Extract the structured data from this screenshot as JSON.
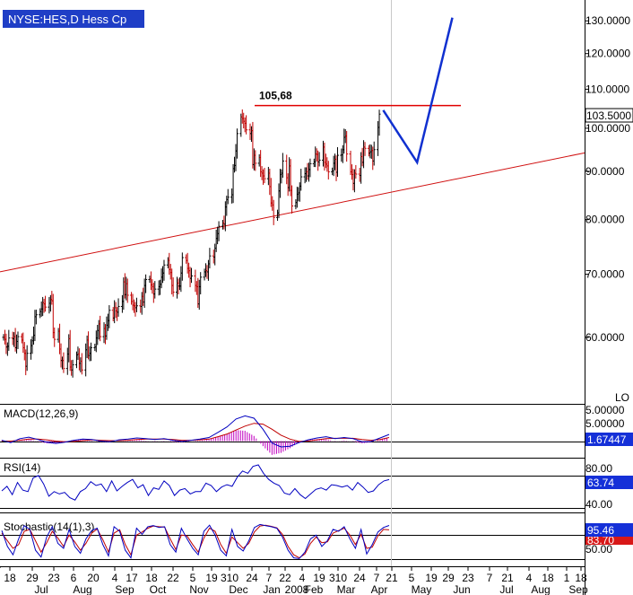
{
  "chart_data": {
    "type": "candlestick",
    "title": "NYSE:HES,D Hess Cp",
    "price_axis": {
      "ylim": [
        51,
        135
      ],
      "scale": "log",
      "ticks": [
        "130.0000",
        "120.0000",
        "110.0000",
        "100.0000",
        "90.0000",
        "80.0000",
        "70.0000",
        "60.0000"
      ],
      "last_price_label": "103.5000",
      "corner_label": "LO"
    },
    "annotations": {
      "resistance_label": "105,68",
      "resistance_value": 105.68,
      "projection_points": [
        [
          "2008-04-18",
          104.5
        ],
        [
          "2008-05-14",
          92
        ],
        [
          "2008-06-10",
          131
        ]
      ],
      "trendline": [
        [
          "2007-07-01",
          70.5
        ],
        [
          "2008-09-25",
          94.5
        ]
      ]
    },
    "price_series": {
      "start": "2007-07-02",
      "closes": [
        60.0,
        59.7,
        58.6,
        58.7,
        59.9,
        59.8,
        60.1,
        58.5,
        59.4,
        60.1,
        59.6,
        58.5,
        57.7,
        55.9,
        57.7,
        58.8,
        59.5,
        60.3,
        63.1,
        63.4,
        63.9,
        64.3,
        65.3,
        65.1,
        64.6,
        65.2,
        65.8,
        65.6,
        60.7,
        59.7,
        60.9,
        58.3,
        56.7,
        56.7,
        55.6,
        57.6,
        59.8,
        55.8,
        55.4,
        56.1,
        57.5,
        57.6,
        56.3,
        56.6,
        55.4,
        58.2,
        59.6,
        57.4,
        57.7,
        58.5,
        58.6,
        59.9,
        61.0,
        62.0,
        60.1,
        61.3,
        60.2,
        61.8,
        62.5,
        64.1,
        62.9,
        64.5,
        64.0,
        63.8,
        64.7,
        65.5,
        68.7,
        66.6,
        68.4,
        66.5,
        65.5,
        64.9,
        64.8,
        64.5,
        64.8,
        64.7,
        66.3,
        65.4,
        68.1,
        69.1,
        69.2,
        68.2,
        67.9,
        66.7,
        67.5,
        67.9,
        68.3,
        69.5,
        70.2,
        71.6,
        72.4,
        70.8,
        70.3,
        68.1,
        67.0,
        68.5,
        68.0,
        68.0,
        70.2,
        72.9,
        72.4,
        71.0,
        70.6,
        69.3,
        69.7,
        68.1,
        67.9,
        65.1,
        67.9,
        69.5,
        70.4,
        70.6,
        70.4,
        71.8,
        73.2,
        73.0,
        74.6,
        76.4,
        77.3,
        78.7,
        79.3,
        79.1,
        82.5,
        84.0,
        84.5,
        85.0,
        90.6,
        91.3,
        94.6,
        98.7,
        102.8,
        102.4,
        101.7,
        101.2,
        99.6,
        98.7,
        99.4,
        91.5,
        93.6,
        91.8,
        93.1,
        89.9,
        89.6,
        89.0,
        88.4,
        89.6,
        86.7,
        83.3,
        82.9,
        80.4,
        81.3,
        85.8,
        89.3,
        89.6,
        92.3,
        88.6,
        86.5,
        91.2,
        85.9,
        82.7,
        83.4,
        85.1,
        85.4,
        86.8,
        88.8,
        89.5,
        89.9,
        89.0,
        90.4,
        91.7,
        92.1,
        93.9,
        93.8,
        92.1,
        92.5,
        95.5,
        92.0,
        91.6,
        91.2,
        89.9,
        90.1,
        91.8,
        92.7,
        89.8,
        93.6,
        93.7,
        94.9,
        97.8,
        98.1,
        93.9,
        89.9,
        89.3,
        87.4,
        89.6,
        89.4,
        89.1,
        93.3,
        92.0,
        95.5,
        95.2,
        94.1,
        94.4,
        94.7,
        92.3,
        94.9,
        100.2,
        103.5
      ]
    },
    "x_axis": {
      "day_ticks": [
        "18",
        "29",
        "23",
        "6",
        "20",
        "4",
        "17",
        "18",
        "22",
        "5",
        "19",
        "310",
        "24",
        "7",
        "22",
        "4",
        "19",
        "310",
        "24",
        "7",
        "21",
        "5",
        "19",
        "29",
        "23",
        "7",
        "21",
        "4",
        "18",
        "1",
        "18"
      ],
      "month_ticks": [
        "Jul",
        "Aug",
        "Sep",
        "Oct",
        "Nov",
        "Dec",
        "Jan",
        "2008",
        "Feb",
        "Mar",
        "Apr",
        "May",
        "Jun",
        "Jul",
        "Aug",
        "Sep"
      ]
    },
    "macd": {
      "label": "MACD(12,26,9)",
      "ticks": [
        "5.00000"
      ],
      "last_value": "1.67447",
      "ylim": [
        -4,
        9
      ],
      "macd": [
        0.2,
        -0.4,
        0.6,
        1.0,
        0.4,
        -0.3,
        -0.6,
        -0.3,
        0.2,
        0.5,
        0.4,
        0.0,
        -0.2,
        0.3,
        0.5,
        0.8,
        0.6,
        0.4,
        0.6,
        0.2,
        -0.1,
        0.2,
        0.5,
        0.9,
        2.2,
        3.6,
        5.6,
        6.4,
        5.8,
        3.0,
        -0.5,
        -1.5,
        -1.3,
        -0.4,
        0.3,
        0.8,
        1.1,
        0.6,
        0.9,
        0.6,
        -0.2,
        -0.1,
        0.8,
        1.67
      ],
      "signal": [
        0.0,
        0.0,
        0.2,
        0.5,
        0.5,
        0.3,
        0.0,
        -0.2,
        -0.1,
        0.1,
        0.3,
        0.2,
        0.1,
        0.1,
        0.2,
        0.4,
        0.5,
        0.5,
        0.5,
        0.4,
        0.2,
        0.2,
        0.3,
        0.5,
        1.1,
        1.8,
        2.8,
        3.8,
        4.5,
        4.3,
        3.0,
        1.5,
        0.5,
        -0.1,
        0.0,
        0.3,
        0.6,
        0.7,
        0.7,
        0.7,
        0.4,
        0.2,
        0.4,
        0.9
      ]
    },
    "rsi": {
      "label": "RSI(14)",
      "ticks": [
        "80.00",
        "40.00"
      ],
      "last_value": "63.74",
      "ylim": [
        22,
        90
      ],
      "values": [
        49,
        55,
        44,
        60,
        50,
        48,
        66,
        69,
        58,
        42,
        48,
        45,
        47,
        40,
        37,
        48,
        52,
        61,
        56,
        58,
        48,
        62,
        49,
        55,
        60,
        64,
        53,
        57,
        43,
        53,
        51,
        62,
        56,
        43,
        50,
        52,
        45,
        48,
        48,
        59,
        56,
        48,
        54,
        57,
        55,
        67,
        75,
        72,
        81,
        83,
        72,
        64,
        59,
        56,
        46,
        44,
        52,
        44,
        39,
        45,
        51,
        53,
        50,
        57,
        56,
        54,
        56,
        50,
        60,
        54,
        47,
        49,
        57,
        62,
        63.74
      ]
    },
    "stochastic": {
      "label": "Stochastic(14(1),3)",
      "ticks": [
        "50.00"
      ],
      "last_values": [
        "95.46",
        "83.70"
      ],
      "ylim": [
        -10,
        125
      ],
      "k": [
        82,
        40,
        18,
        60,
        95,
        85,
        30,
        12,
        65,
        92,
        48,
        35,
        85,
        40,
        22,
        60,
        82,
        88,
        45,
        15,
        92,
        80,
        30,
        10,
        88,
        72,
        92,
        95,
        90,
        92,
        45,
        25,
        88,
        60,
        35,
        18,
        80,
        96,
        70,
        30,
        15,
        85,
        40,
        28,
        55,
        90,
        98,
        95,
        92,
        88,
        65,
        30,
        10,
        8,
        25,
        60,
        70,
        40,
        55,
        85,
        80,
        92,
        60,
        35,
        85,
        20,
        45,
        78,
        90,
        95.46
      ],
      "d": [
        75,
        55,
        35,
        45,
        80,
        85,
        55,
        25,
        50,
        80,
        62,
        40,
        70,
        52,
        30,
        48,
        75,
        86,
        58,
        25,
        75,
        84,
        45,
        18,
        70,
        78,
        88,
        94,
        92,
        91,
        60,
        32,
        70,
        68,
        45,
        25,
        62,
        88,
        80,
        45,
        22,
        65,
        50,
        35,
        48,
        78,
        94,
        96,
        93,
        89,
        72,
        40,
        18,
        10,
        20,
        48,
        65,
        50,
        52,
        75,
        82,
        88,
        70,
        45,
        72,
        35,
        38,
        68,
        85,
        83.7
      ]
    }
  },
  "colors": {
    "background": "#ffffff",
    "title_bg": "#1f3ec6",
    "up_candle": "#000000",
    "down_candle": "#c00000",
    "resistance_line": "#e00000",
    "trendline": "#d01010",
    "projection": "#1030d0",
    "macd_line": "#0000c0",
    "signal_line": "#c00000",
    "histogram": "#c000c0",
    "rsi_line": "#0000c0",
    "stoch_k": "#0000c0",
    "stoch_d": "#c00000",
    "value_box_blue": "#1530d8",
    "value_box_red": "#d81818"
  }
}
